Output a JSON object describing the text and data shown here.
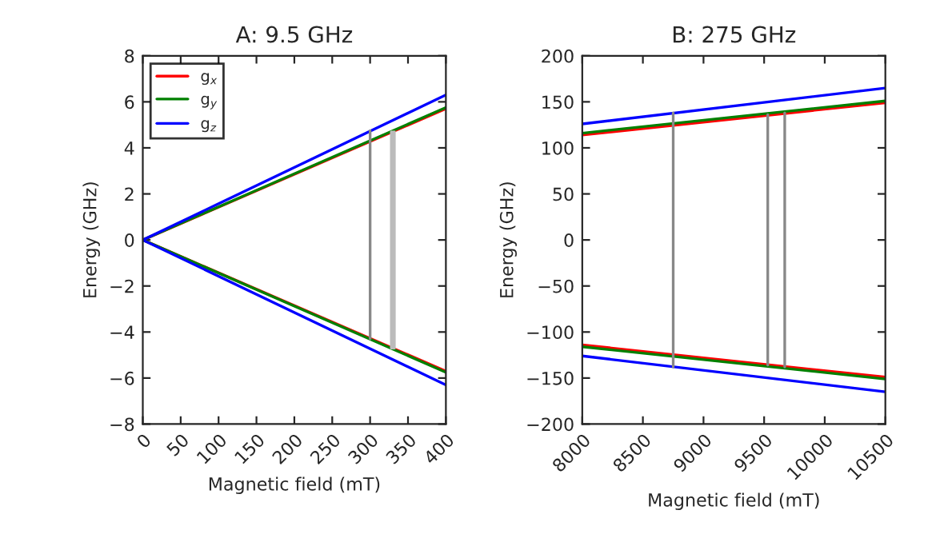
{
  "chart_data": [
    {
      "type": "line",
      "title": "A: 9.5 GHz",
      "xlabel": "Magnetic field (mT)",
      "ylabel": "Energy (GHz)",
      "xlim": [
        0,
        400
      ],
      "xticks": [
        0,
        50,
        100,
        150,
        200,
        250,
        300,
        350,
        400
      ],
      "ylim": [
        -8,
        8
      ],
      "yticks": [
        -8,
        -6,
        -4,
        -2,
        0,
        2,
        4,
        6,
        8
      ],
      "legend": "top left",
      "grid": false,
      "marker": "none",
      "line_style": "solid",
      "series": [
        {
          "name": "g$_{x}$",
          "color": "#ff0000",
          "x": [
            400,
            0,
            400
          ],
          "values": [
            5.7,
            0,
            -5.7
          ]
        },
        {
          "name": "g$_{y}$",
          "color": "#008000",
          "x": [
            400,
            0,
            400
          ],
          "values": [
            5.75,
            0,
            -5.75
          ]
        },
        {
          "name": "g$_{z}$",
          "color": "#0000ff",
          "x": [
            400,
            0,
            400
          ],
          "values": [
            6.3,
            0,
            -6.3
          ]
        },
        {
          "color": "#888888",
          "x": [
            300,
            300
          ],
          "values": [
            4.75,
            -4.3
          ]
        },
        {
          "color": "#bbbbbb",
          "x": [
            328,
            328
          ],
          "values": [
            4.7,
            -4.7
          ]
        },
        {
          "color": "#bbbbbb",
          "x": [
            330,
            330
          ],
          "values": [
            4.7,
            -4.7
          ]
        },
        {
          "color": "#bbbbbb",
          "x": [
            332,
            332
          ],
          "values": [
            4.7,
            -4.7
          ]
        }
      ]
    },
    {
      "type": "line",
      "title": "B: 275 GHz",
      "xlabel": "Magnetic field (mT)",
      "ylabel": "Energy (GHz)",
      "xlim": [
        8000,
        10500
      ],
      "xticks": [
        8000,
        8500,
        9000,
        9500,
        10000,
        10500
      ],
      "ylim": [
        -200,
        200
      ],
      "yticks": [
        -200,
        -150,
        -100,
        -50,
        0,
        50,
        100,
        150,
        200
      ],
      "grid": false,
      "marker": "none",
      "line_style": "solid",
      "series": [
        {
          "color": "#ff0000",
          "x": [
            8000,
            10500
          ],
          "values": [
            114,
            149
          ]
        },
        {
          "color": "#ff0000",
          "x": [
            8000,
            10500
          ],
          "values": [
            -114,
            -149
          ]
        },
        {
          "color": "#008000",
          "x": [
            8000,
            10500
          ],
          "values": [
            116,
            151
          ]
        },
        {
          "color": "#008000",
          "x": [
            8000,
            10500
          ],
          "values": [
            -116,
            -151
          ]
        },
        {
          "color": "#0000ff",
          "x": [
            8000,
            10500
          ],
          "values": [
            126,
            165
          ]
        },
        {
          "color": "#0000ff",
          "x": [
            8000,
            10500
          ],
          "values": [
            -126,
            -165
          ]
        },
        {
          "color": "#888888",
          "x": [
            8750,
            8750
          ],
          "values": [
            138,
            -138
          ]
        },
        {
          "color": "#888888",
          "x": [
            9530,
            9530
          ],
          "values": [
            136,
            -136
          ]
        },
        {
          "color": "#888888",
          "x": [
            9670,
            9670
          ],
          "values": [
            138,
            -138
          ]
        }
      ]
    }
  ]
}
